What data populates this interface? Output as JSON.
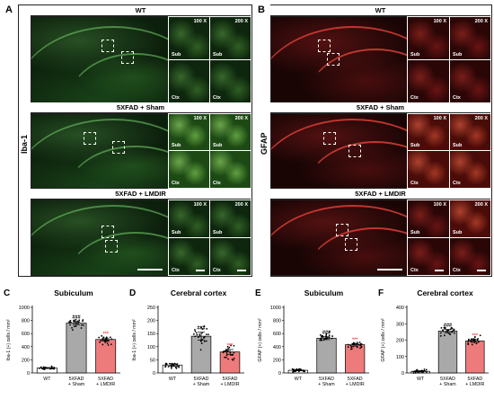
{
  "panels": {
    "A": {
      "letter": "A",
      "stain": "Iba-1",
      "rows": [
        "WT",
        "5XFAD + Sham",
        "5XFAD + LMDIR"
      ],
      "mag_low": "100 X",
      "mag_high": "200 X",
      "region_top": "Sub",
      "region_bottom": "Ctx"
    },
    "B": {
      "letter": "B",
      "stain": "GFAP",
      "rows": [
        "WT",
        "5XFAD + Sham",
        "5XFAD + LMDIR"
      ],
      "mag_low": "100 X",
      "mag_high": "200 X",
      "region_top": "Sub",
      "region_bottom": "Ctx"
    }
  },
  "colors": {
    "wt_bar": "#ffffff",
    "sham_bar": "#a9a9a9",
    "lmdir_bar": "#ee7b7b",
    "dot": "#000000",
    "sig_sham": "#000000",
    "sig_lmdir": "#ff3b3b"
  },
  "chart_data": [
    {
      "letter": "C",
      "type": "bar",
      "title": "Subiculum",
      "ylabel": "Iba-1 (+) cells / mm²",
      "categories": [
        "WT",
        "5XFAD + Sham",
        "5XFAD + LMDIR"
      ],
      "values": [
        75,
        760,
        510
      ],
      "errors": [
        8,
        25,
        22
      ],
      "ylim": [
        0,
        1000
      ],
      "yticks": [
        0,
        200,
        400,
        600,
        800,
        1000
      ],
      "significance": [
        "",
        "###",
        "***"
      ]
    },
    {
      "letter": "D",
      "type": "bar",
      "title": "Cerebral cortex",
      "ylabel": "Iba-1 (+) cells / mm²",
      "categories": [
        "WT",
        "5XFAD + Sham",
        "5XFAD + LMDIR"
      ],
      "values": [
        30,
        140,
        80
      ],
      "errors": [
        5,
        15,
        9
      ],
      "ylim": [
        0,
        250
      ],
      "yticks": [
        0,
        50,
        100,
        150,
        200,
        250
      ],
      "significance": [
        "",
        "###",
        "***"
      ]
    },
    {
      "letter": "E",
      "type": "bar",
      "title": "Subiculum",
      "ylabel": "GFAP (+) cells / mm²",
      "categories": [
        "WT",
        "5XFAD + Sham",
        "5XFAD + LMDIR"
      ],
      "values": [
        40,
        530,
        430
      ],
      "errors": [
        8,
        22,
        18
      ],
      "ylim": [
        0,
        1000
      ],
      "yticks": [
        0,
        200,
        400,
        600,
        800,
        1000
      ],
      "significance": [
        "",
        "###",
        "***"
      ]
    },
    {
      "letter": "F",
      "type": "bar",
      "title": "Cerebral cortex",
      "ylabel": "GFAP (+) cells / mm²",
      "categories": [
        "WT",
        "5XFAD + Sham",
        "5XFAD + LMDIR"
      ],
      "values": [
        10,
        255,
        195
      ],
      "errors": [
        4,
        10,
        9
      ],
      "ylim": [
        0,
        400
      ],
      "yticks": [
        0,
        100,
        200,
        300,
        400
      ],
      "significance": [
        "",
        "###",
        "***"
      ]
    }
  ]
}
